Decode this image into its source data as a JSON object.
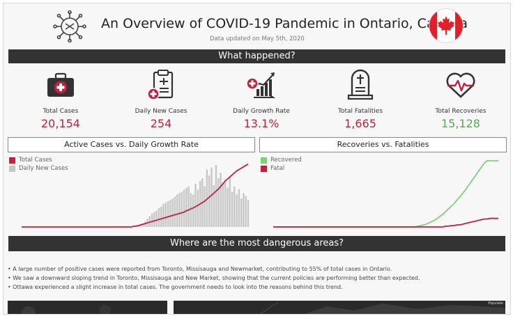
{
  "header": {
    "title": "An Overview of COVID-19 Pandemic in Ontario, Canada",
    "updated": "Data updated on May 5th, 2020",
    "icons": {
      "left": "virus-icon",
      "right": "canada-flag-icon"
    }
  },
  "sections": {
    "what_happened": "What happened?",
    "dangerous_areas": "Where are the most dangerous areas?"
  },
  "kpis": [
    {
      "label": "Total Cases",
      "value": "20,154",
      "icon": "first-aid-kit-icon"
    },
    {
      "label": "Daily New Cases",
      "value": "254",
      "icon": "clipboard-icon"
    },
    {
      "label": "Daily Growth Rate",
      "value": "13.1%",
      "icon": "growth-chart-icon"
    },
    {
      "label": "Total Fatalities",
      "value": "1,665",
      "icon": "tombstone-icon"
    },
    {
      "label": "Total Recoveries",
      "value": "15,128",
      "icon": "heartbeat-icon"
    }
  ],
  "colors": {
    "red": "#c1213c",
    "green": "#5ca45a",
    "banner": "#333333",
    "bar": "#c7c7c7",
    "recovered": "#7fd07a"
  },
  "chart_data": [
    {
      "type": "bar",
      "title": "Active Cases vs. Daily Growth Rate",
      "legend_position": "top-left",
      "series": [
        {
          "name": "Total Cases",
          "kind": "line",
          "values": [
            0,
            0,
            0,
            0,
            0,
            0,
            0,
            0,
            0,
            0,
            0,
            0,
            0,
            0,
            0,
            0,
            0,
            0,
            0,
            0,
            0,
            0,
            0,
            0,
            0,
            0,
            0,
            0,
            0,
            0,
            0,
            0,
            0,
            0,
            0,
            0,
            0,
            0,
            0,
            0,
            0,
            0,
            0,
            0,
            0,
            0,
            0,
            0,
            0,
            1,
            1,
            2,
            3,
            4,
            5,
            6,
            7,
            8,
            9,
            10,
            11,
            12,
            13,
            14,
            15,
            16,
            17,
            18,
            19,
            20,
            21,
            22,
            24,
            25,
            27,
            28,
            30,
            32,
            34,
            36,
            38,
            41,
            44,
            47,
            50,
            53,
            56,
            60,
            64,
            68,
            71,
            74,
            77,
            80,
            83,
            85,
            87,
            89,
            91,
            93
          ]
        },
        {
          "name": "Daily New Cases",
          "kind": "bar",
          "values": [
            0,
            0,
            0,
            0,
            0,
            0,
            0,
            0,
            0,
            0,
            0,
            0,
            0,
            0,
            0,
            0,
            0,
            0,
            0,
            0,
            0,
            0,
            0,
            0,
            0,
            0,
            0,
            0,
            0,
            0,
            0,
            0,
            0,
            0,
            0,
            0,
            0,
            0,
            0,
            0,
            0,
            0,
            0,
            0,
            0,
            0,
            0,
            0,
            0,
            0,
            1,
            2,
            3,
            5,
            8,
            12,
            16,
            20,
            22,
            24,
            28,
            30,
            34,
            36,
            38,
            40,
            42,
            45,
            48,
            50,
            52,
            55,
            58,
            60,
            50,
            48,
            64,
            55,
            68,
            72,
            60,
            85,
            76,
            88,
            62,
            92,
            72,
            80,
            66,
            70,
            58,
            74,
            52,
            60,
            48,
            56,
            42,
            50,
            46,
            40
          ]
        }
      ]
    },
    {
      "type": "line",
      "title": "Recoveries vs. Fatalities",
      "legend_position": "top-left",
      "series": [
        {
          "name": "Recovered",
          "values": [
            0,
            0,
            0,
            0,
            0,
            0,
            0,
            0,
            0,
            0,
            0,
            0,
            0,
            0,
            0,
            0,
            0,
            0,
            0,
            0,
            0,
            0,
            0,
            0,
            0,
            0,
            0,
            0,
            0,
            0,
            0,
            0,
            0,
            0,
            0,
            0,
            0,
            0,
            0,
            0,
            0,
            0,
            0,
            0,
            0,
            0,
            0,
            0,
            0,
            0,
            0,
            0,
            1,
            2,
            3,
            4,
            6,
            8,
            10,
            13,
            16,
            19,
            23,
            27,
            31,
            35,
            40,
            45,
            50,
            55,
            61,
            67,
            73,
            79,
            85,
            91,
            97,
            100,
            100,
            100,
            100,
            100
          ]
        },
        {
          "name": "Fatal",
          "values": [
            0,
            0,
            0,
            0,
            0,
            0,
            0,
            0,
            0,
            0,
            0,
            0,
            0,
            0,
            0,
            0,
            0,
            0,
            0,
            0,
            0,
            0,
            0,
            0,
            0,
            0,
            0,
            0,
            0,
            0,
            0,
            0,
            0,
            0,
            0,
            0,
            0,
            0,
            0,
            0,
            0,
            0,
            0,
            0,
            0,
            0,
            0,
            0,
            0,
            0,
            0,
            0,
            0,
            0,
            0,
            0,
            0,
            0,
            0,
            0,
            0,
            0,
            1,
            1,
            2,
            2,
            3,
            3,
            4,
            5,
            6,
            7,
            8,
            9,
            10,
            11,
            12,
            12,
            13,
            13,
            13,
            13
          ]
        }
      ]
    }
  ],
  "bullets": [
    "A large number of positive cases were reported from Toronto, Missisauga and Newmarket, contributing to 55% of total cases in Ontario.",
    "We saw a downward sloping trend in Toronto, Missisauga and New Market, showing that the current policies are performing better than expected.",
    "Ottawa experienced a slight increase in total cases. The government needs to look into the reasons behind this trend."
  ],
  "map_credit": "Populate"
}
